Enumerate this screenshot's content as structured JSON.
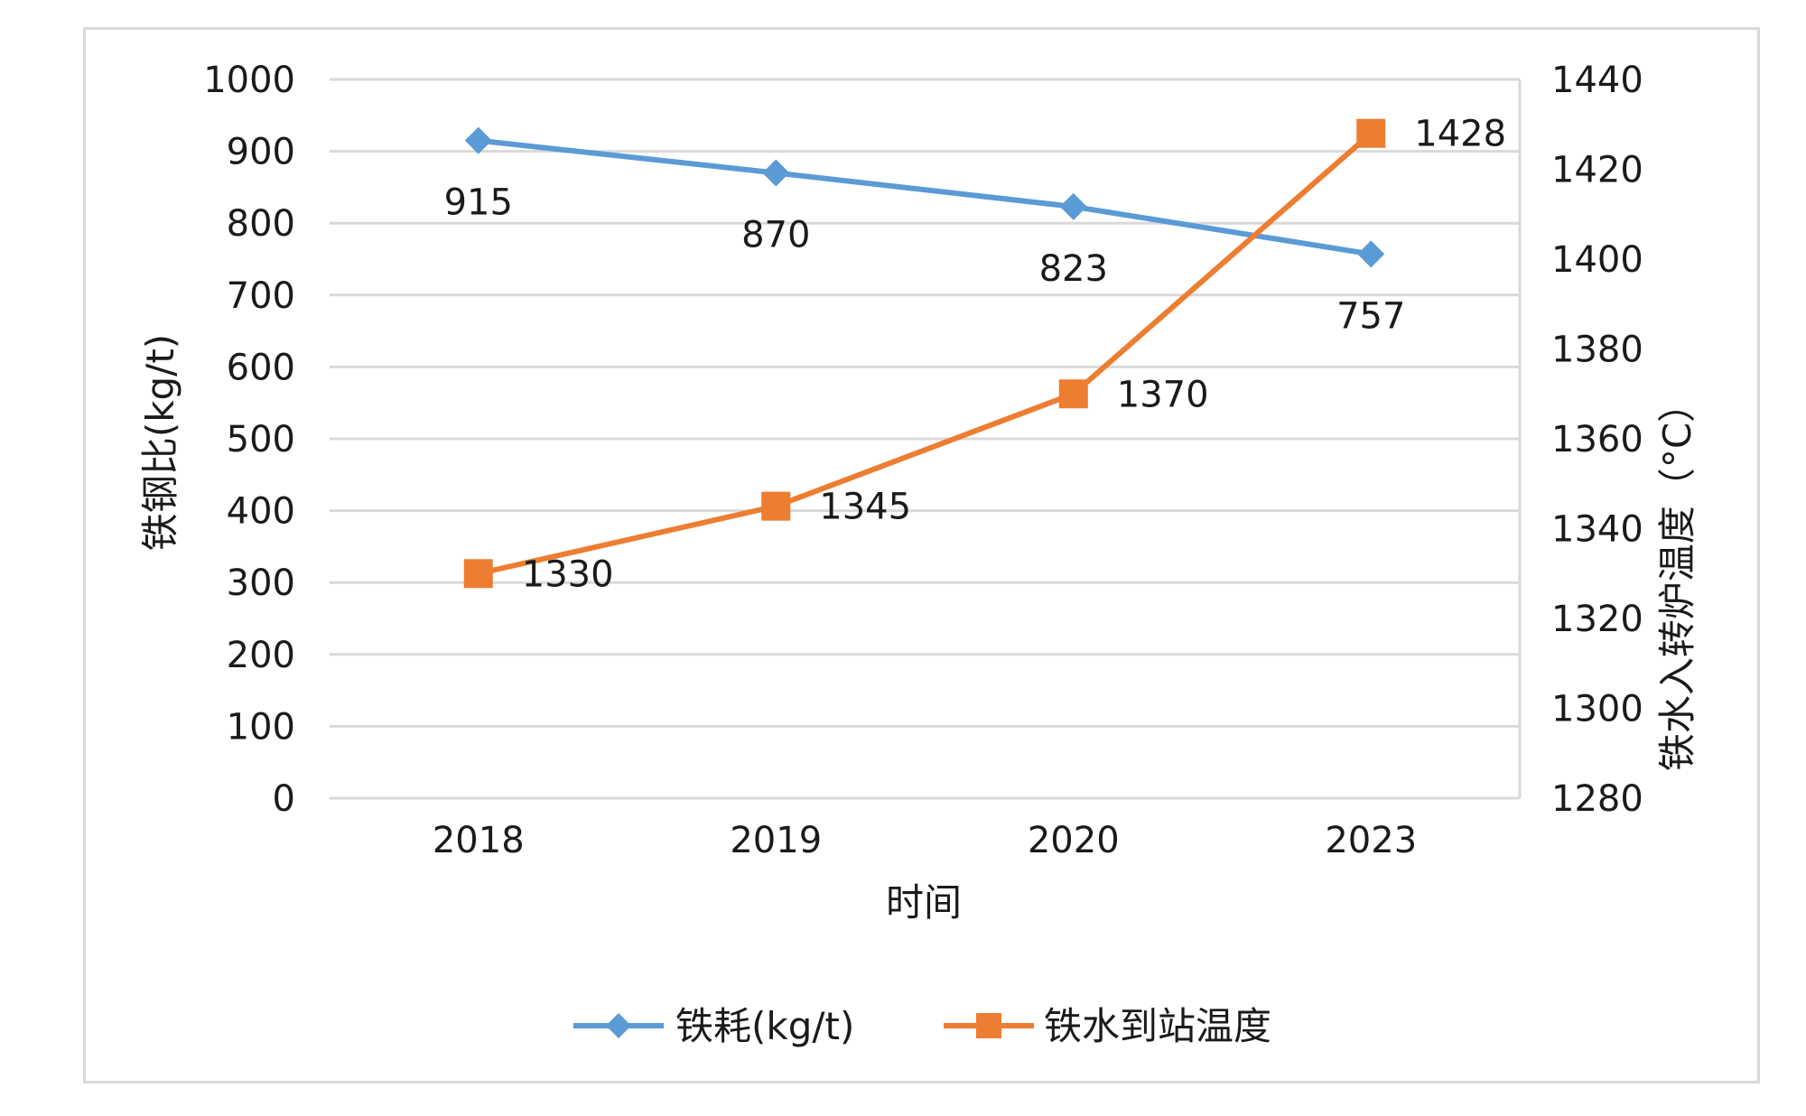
{
  "chart_data": {
    "type": "line",
    "categories": [
      "2018",
      "2019",
      "2020",
      "2023"
    ],
    "xlabel": "时间",
    "y_left": {
      "label": "铁钢比(kg/t)",
      "ylim": [
        0,
        1000
      ],
      "ticks": [
        "0",
        "100",
        "200",
        "300",
        "400",
        "500",
        "600",
        "700",
        "800",
        "900",
        "1000"
      ]
    },
    "y_right": {
      "label": "铁水入转炉温度（°C）",
      "ylim": [
        1280,
        1440
      ],
      "ticks": [
        "1280",
        "1300",
        "1320",
        "1340",
        "1360",
        "1380",
        "1400",
        "1420",
        "1440"
      ]
    },
    "series": [
      {
        "name": "铁耗(kg/t)",
        "axis": "left",
        "marker": "diamond",
        "color": "#5b9bd5",
        "values": [
          915,
          870,
          823,
          757
        ],
        "labels": [
          "915",
          "870",
          "823",
          "757"
        ]
      },
      {
        "name": "铁水到站温度",
        "axis": "right",
        "marker": "square",
        "color": "#ed7d31",
        "values": [
          1330,
          1345,
          1370,
          1428
        ],
        "labels": [
          "1330",
          "1345",
          "1370",
          "1428"
        ]
      }
    ],
    "grid": true,
    "legend_position": "bottom"
  }
}
